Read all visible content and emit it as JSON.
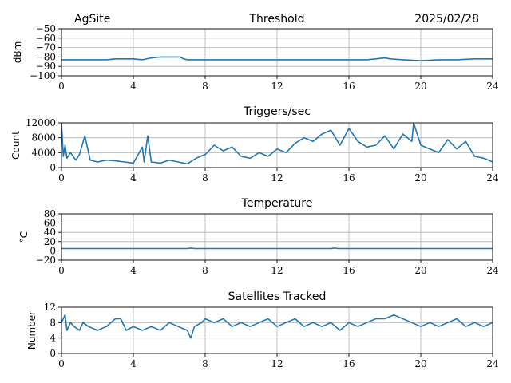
{
  "header": {
    "site": "AgSite",
    "date": "2025/02/28"
  },
  "style": {
    "line_color": "#1f77b4",
    "grid_color": "#b0b0b0",
    "axis_color": "#000000"
  },
  "chart_data": [
    {
      "id": "threshold",
      "type": "line",
      "title": "Threshold",
      "xlabel": "",
      "ylabel": "dBm",
      "xlim": [
        0,
        24
      ],
      "ylim": [
        -100,
        -50
      ],
      "x_ticks": [
        0,
        4,
        8,
        12,
        16,
        20,
        24
      ],
      "y_ticks": [
        -100,
        -90,
        -80,
        -70,
        -60,
        -50
      ],
      "y_tick_labels": [
        "−100",
        "−90",
        "−80",
        "−70",
        "−60",
        "−50"
      ],
      "grid": true,
      "series": [
        {
          "x": [
            0,
            2.5,
            3,
            4,
            4.5,
            5,
            5.5,
            6,
            6.6,
            6.8,
            7,
            8,
            10,
            12,
            14,
            16,
            17,
            17.5,
            18,
            18.3,
            19,
            20,
            21,
            22,
            23,
            24
          ],
          "y": [
            -83,
            -83,
            -82,
            -82,
            -83,
            -81,
            -80,
            -80,
            -80,
            -82,
            -83,
            -83,
            -83,
            -83,
            -83,
            -83,
            -83,
            -82,
            -81,
            -82,
            -83,
            -84,
            -83,
            -83,
            -82,
            -82
          ]
        }
      ]
    },
    {
      "id": "triggers",
      "type": "line",
      "title": "Triggers/sec",
      "xlabel": "",
      "ylabel": "Count",
      "xlim": [
        0,
        24
      ],
      "ylim": [
        0,
        12000
      ],
      "x_ticks": [
        0,
        4,
        8,
        12,
        16,
        20,
        24
      ],
      "y_ticks": [
        0,
        4000,
        8000,
        12000
      ],
      "y_tick_labels": [
        "0",
        "4000",
        "8000",
        "12000"
      ],
      "grid": true,
      "series": [
        {
          "x": [
            0,
            0.1,
            0.2,
            0.3,
            0.5,
            0.8,
            1.0,
            1.3,
            1.6,
            2.0,
            2.5,
            3.0,
            3.5,
            4.0,
            4.5,
            4.6,
            4.8,
            5.0,
            5.5,
            6.0,
            6.5,
            7.0,
            7.5,
            8.0,
            8.5,
            9.0,
            9.5,
            10.0,
            10.5,
            11.0,
            11.5,
            12.0,
            12.5,
            13.0,
            13.5,
            14.0,
            14.5,
            15.0,
            15.5,
            16.0,
            16.5,
            17.0,
            17.5,
            18.0,
            18.5,
            19.0,
            19.5,
            19.6,
            20.0,
            20.5,
            21.0,
            21.5,
            22.0,
            22.5,
            23.0,
            23.5,
            24.0
          ],
          "y": [
            12000,
            3000,
            6000,
            2500,
            4000,
            2000,
            3500,
            8500,
            2000,
            1500,
            2000,
            1800,
            1500,
            1200,
            5500,
            1500,
            8500,
            1500,
            1200,
            2000,
            1500,
            1000,
            2500,
            3500,
            6000,
            4500,
            5500,
            3000,
            2500,
            4000,
            3000,
            5000,
            4000,
            6500,
            8000,
            7000,
            9000,
            10000,
            6000,
            10500,
            7000,
            5500,
            6000,
            8500,
            5000,
            9000,
            7000,
            12000,
            6000,
            5000,
            4000,
            7500,
            5000,
            7000,
            3000,
            2500,
            1500
          ]
        }
      ]
    },
    {
      "id": "temperature",
      "type": "line",
      "title": "Temperature",
      "xlabel": "",
      "ylabel": "°C",
      "xlim": [
        0,
        24
      ],
      "ylim": [
        -20,
        80
      ],
      "x_ticks": [
        0,
        4,
        8,
        12,
        16,
        20,
        24
      ],
      "y_ticks": [
        -20,
        0,
        20,
        40,
        60,
        80
      ],
      "y_tick_labels": [
        "−20",
        "0",
        "20",
        "40",
        "60",
        "80"
      ],
      "grid": true,
      "series": [
        {
          "x": [
            0,
            7.0,
            7.2,
            7.4,
            12,
            15,
            15.2,
            15.4,
            24
          ],
          "y": [
            5,
            5,
            6,
            5,
            5,
            5,
            6,
            5,
            5
          ]
        }
      ]
    },
    {
      "id": "satellites",
      "type": "line",
      "title": "Satellites Tracked",
      "xlabel": "",
      "ylabel": "Number",
      "xlim": [
        0,
        24
      ],
      "ylim": [
        0,
        12
      ],
      "x_ticks": [
        0,
        4,
        8,
        12,
        16,
        20,
        24
      ],
      "y_ticks": [
        0,
        4,
        8,
        12
      ],
      "y_tick_labels": [
        "0",
        "4",
        "8",
        "12"
      ],
      "grid": true,
      "series": [
        {
          "x": [
            0,
            0.2,
            0.3,
            0.5,
            0.7,
            1.0,
            1.2,
            1.5,
            2.0,
            2.5,
            3.0,
            3.3,
            3.6,
            4.0,
            4.5,
            5.0,
            5.5,
            6.0,
            6.5,
            7.0,
            7.2,
            7.4,
            7.8,
            8.0,
            8.5,
            9.0,
            9.5,
            10.0,
            10.5,
            11.0,
            11.5,
            12.0,
            12.5,
            13.0,
            13.5,
            14.0,
            14.5,
            15.0,
            15.5,
            16.0,
            16.5,
            17.0,
            17.5,
            18.0,
            18.5,
            19.0,
            19.5,
            20.0,
            20.5,
            21.0,
            21.5,
            22.0,
            22.5,
            23.0,
            23.5,
            24.0
          ],
          "y": [
            8,
            10,
            6,
            8,
            7,
            6,
            8,
            7,
            6,
            7,
            9,
            9,
            6,
            7,
            6,
            7,
            6,
            8,
            7,
            6,
            4,
            7,
            8,
            9,
            8,
            9,
            7,
            8,
            7,
            8,
            9,
            7,
            8,
            9,
            7,
            8,
            7,
            8,
            6,
            8,
            7,
            8,
            9,
            9,
            10,
            9,
            8,
            7,
            8,
            7,
            8,
            9,
            7,
            8,
            7,
            8
          ]
        }
      ]
    }
  ]
}
